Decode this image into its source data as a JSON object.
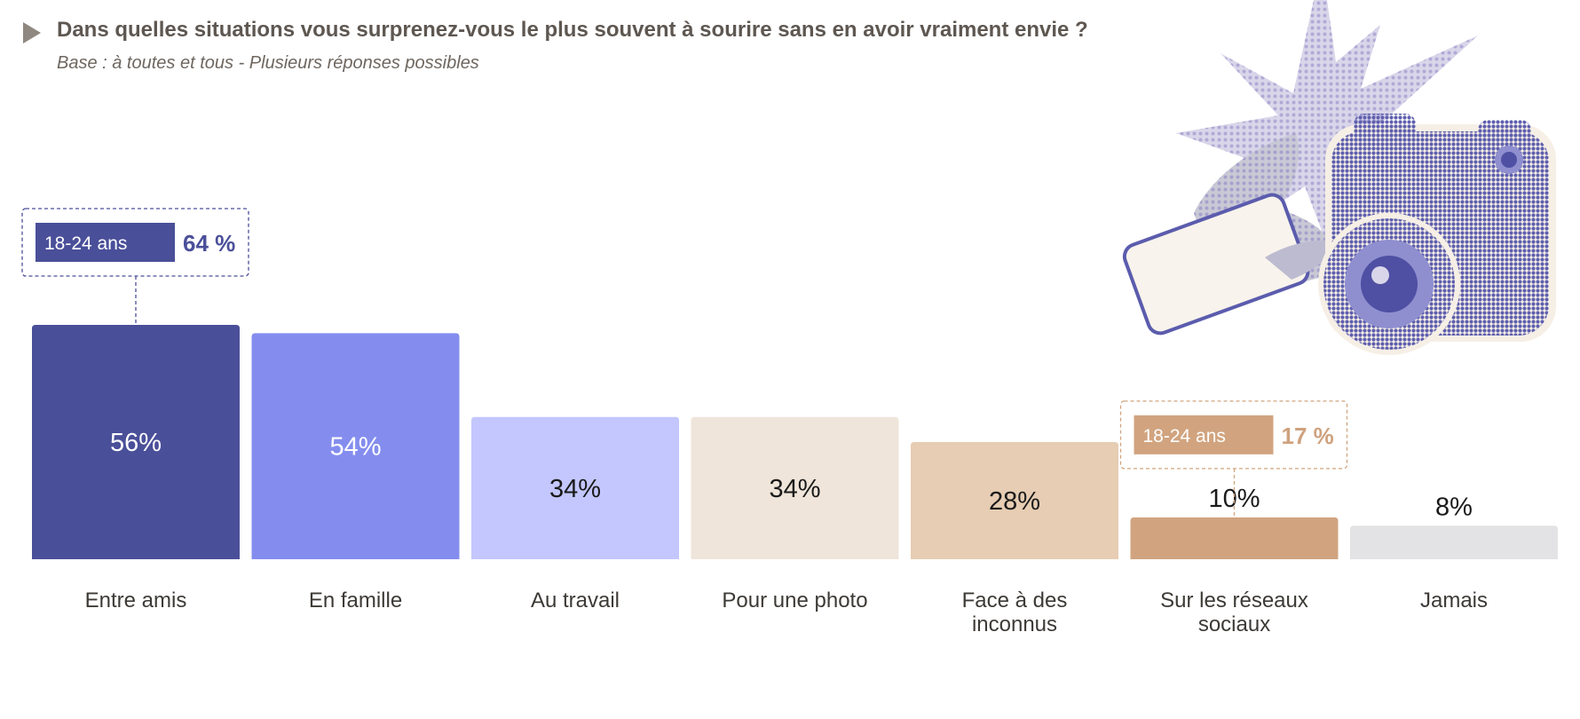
{
  "header": {
    "title": "Dans quelles situations vous surprenez-vous le plus souvent à sourire sans en avoir vraiment envie ?",
    "subtitle": "Base : à toutes et tous - Plusieurs réponses possibles"
  },
  "colors": {
    "bars": [
      "#4a4f99",
      "#848dee",
      "#c3c7fd",
      "#efe5da",
      "#e6cdb3",
      "#d1a47f",
      "#e3e3e5"
    ],
    "label_text": [
      "#ffffff",
      "#ffffff",
      "#1a1a1a",
      "#1a1a1a",
      "#1a1a1a",
      "#1a1a1a",
      "#1a1a1a"
    ],
    "axis_text": "#3d3a36"
  },
  "chart_data": {
    "type": "bar",
    "title": "Dans quelles situations vous surprenez-vous le plus souvent à sourire sans en avoir vraiment envie ?",
    "subtitle": "Base : à toutes et tous - Plusieurs réponses possibles",
    "categories": [
      [
        "Entre amis"
      ],
      [
        "En famille"
      ],
      [
        "Au travail"
      ],
      [
        "Pour une photo"
      ],
      [
        "Face à des",
        "inconnus"
      ],
      [
        "Sur les réseaux",
        "sociaux"
      ],
      [
        "Jamais"
      ]
    ],
    "values": [
      56,
      54,
      34,
      34,
      28,
      10,
      8
    ],
    "value_labels": [
      "56%",
      "54%",
      "34%",
      "34%",
      "28%",
      "10%",
      "8%"
    ],
    "unit": "%",
    "ylim": [
      0,
      56
    ],
    "grid": false,
    "legend": "none",
    "annotations": [
      {
        "category_index": 0,
        "label": "18-24 ans",
        "value": 64,
        "value_label": "64 %",
        "color": "#4a4f99",
        "text_color": "#4a4f99"
      },
      {
        "category_index": 5,
        "label": "18-24 ans",
        "value": 17,
        "value_label": "17 %",
        "color": "#d1a47f",
        "text_color": "#cfa27e"
      }
    ]
  }
}
